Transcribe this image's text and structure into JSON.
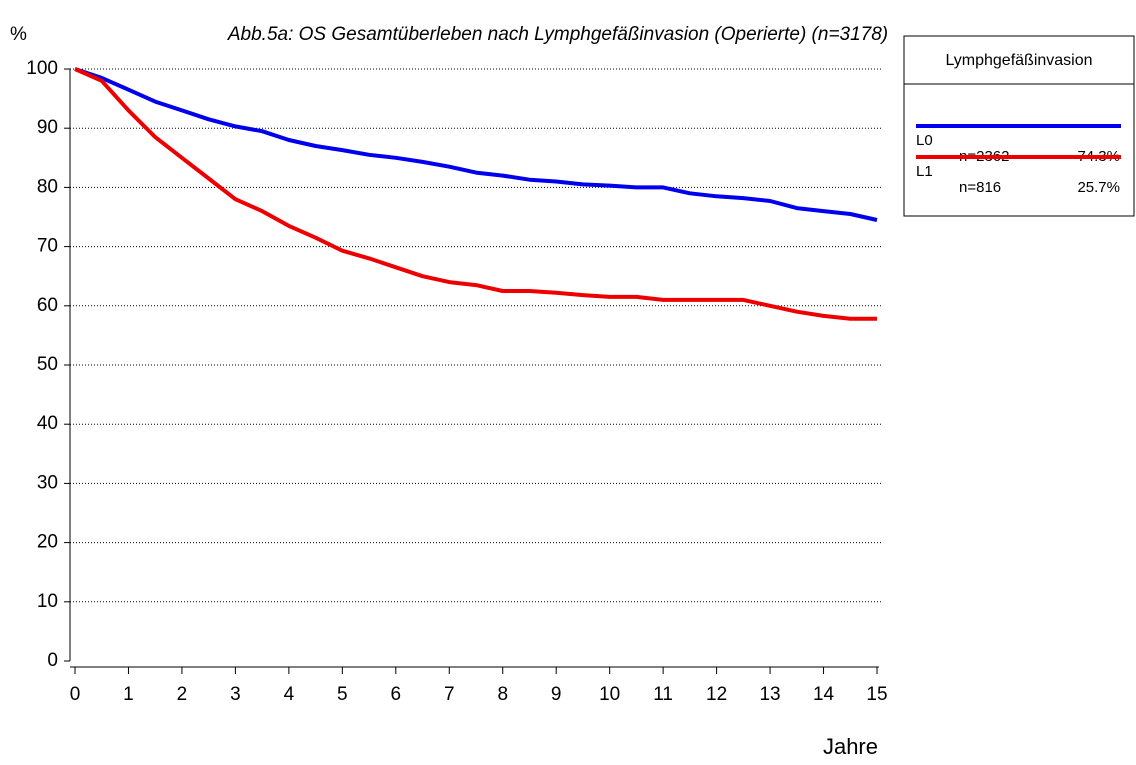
{
  "chart_data": {
    "type": "line",
    "title": "Abb.5a: OS Gesamtüberleben nach Lymphgefäßinvasion (Operierte) (n=3178)",
    "y_label": "%",
    "x_label": "Jahre",
    "x": [
      0,
      0.5,
      1,
      1.5,
      2,
      2.5,
      3,
      3.5,
      4,
      4.5,
      5,
      5.5,
      6,
      6.5,
      7,
      7.5,
      8,
      8.5,
      9,
      9.5,
      10,
      10.5,
      11,
      11.5,
      12,
      12.5,
      13,
      13.5,
      14,
      14.5,
      15
    ],
    "series": [
      {
        "name": "L0",
        "color": "#0000ee",
        "n_label": "n=2362",
        "share": 74.3,
        "share_label": "74.3%",
        "values": [
          100,
          98.5,
          96.5,
          94.5,
          93,
          91.5,
          90.3,
          89.5,
          88,
          87,
          86.3,
          85.5,
          85,
          84.3,
          83.5,
          82.5,
          82,
          81.3,
          81,
          80.5,
          80.3,
          80,
          80,
          79,
          78.5,
          78.2,
          77.7,
          76.5,
          76,
          75.5,
          74.5
        ]
      },
      {
        "name": "L1",
        "color": "#ee0000",
        "n_label": "n=816",
        "share": 25.7,
        "share_label": "25.7%",
        "values": [
          100,
          98,
          93,
          88.5,
          85,
          81.5,
          78,
          76,
          73.5,
          71.5,
          69.3,
          68,
          66.5,
          65,
          64,
          63.5,
          62.5,
          62.5,
          62.2,
          61.8,
          61.5,
          61.5,
          61,
          61,
          61,
          61,
          60,
          59,
          58.3,
          57.8,
          57.8
        ]
      }
    ],
    "legend_title": "Lymphgefäßinvasion",
    "legend_position": "right",
    "xlim": [
      0,
      15
    ],
    "xticks": [
      0,
      1,
      2,
      3,
      4,
      5,
      6,
      7,
      8,
      9,
      10,
      11,
      12,
      13,
      14,
      15
    ],
    "ylim": [
      0,
      100
    ],
    "yticks": [
      0,
      10,
      20,
      30,
      40,
      50,
      60,
      70,
      80,
      90,
      100
    ],
    "grid": true
  }
}
